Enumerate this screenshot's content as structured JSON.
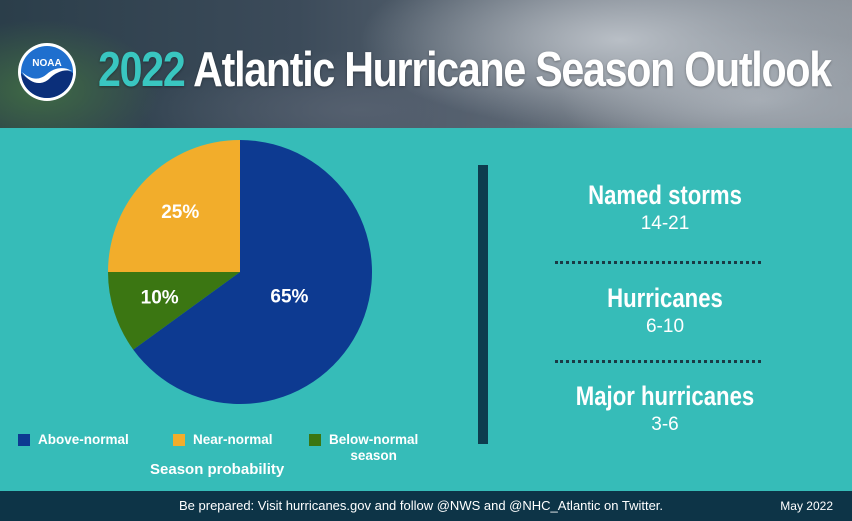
{
  "header": {
    "logo_text": "NOAA",
    "title_year": "2022",
    "title_rest": "Atlantic Hurricane Season Outlook"
  },
  "chart_data": {
    "type": "pie",
    "slices": [
      {
        "label": "Above-normal",
        "value": 65,
        "display": "65%",
        "color": "#0d3a91"
      },
      {
        "label": "Below-normal season",
        "value": 10,
        "display": "10%",
        "color": "#3b7612"
      },
      {
        "label": "Near-normal",
        "value": 25,
        "display": "25%",
        "color": "#f2ad2b"
      }
    ],
    "legend": {
      "above": "Above-normal",
      "near": "Near-normal",
      "below_line1": "Below-normal",
      "below_line2": "season",
      "placement": "bottom"
    },
    "caption": "Season probability"
  },
  "stats": [
    {
      "label": "Named storms",
      "value": "14-21"
    },
    {
      "label": "Hurricanes",
      "value": "6-10"
    },
    {
      "label": "Major hurricanes",
      "value": "3-6"
    }
  ],
  "footer": {
    "text": "Be prepared: Visit hurricanes.gov and follow @NWS and @NHC_Atlantic on Twitter.",
    "date": "May 2022"
  },
  "colors": {
    "teal_background": "#36bcb8",
    "footer_background": "#0d3447",
    "divider": "#0d3d4e",
    "title_year": "#39c6c0"
  }
}
